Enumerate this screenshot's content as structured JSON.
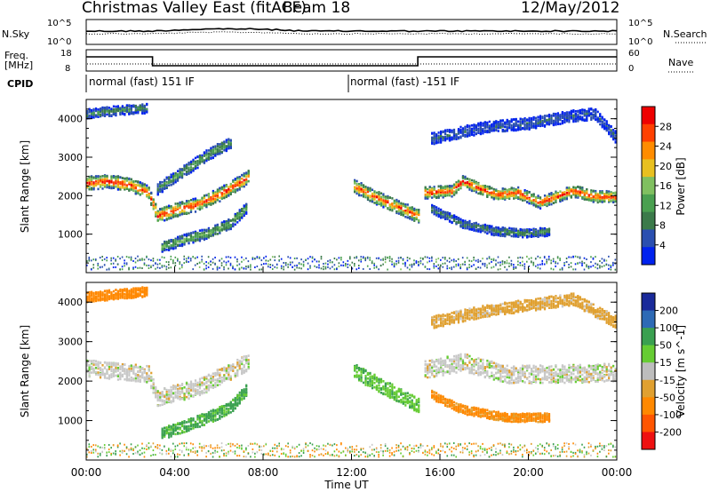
{
  "header": {
    "title": "Christmas Valley East (fitACF)",
    "beam": "Beam 18",
    "date": "12/May/2012"
  },
  "colors": {
    "power": [
      "#0022ee",
      "#2a4fb0",
      "#3b7a4a",
      "#4aa050",
      "#80c060",
      "#e8c020",
      "#ff8c00",
      "#ff4000",
      "#ee0000"
    ],
    "velocity": [
      "#1a2a9a",
      "#2d6ab5",
      "#3aa050",
      "#66cc33",
      "#bdbdbd",
      "#e0a030",
      "#ff8800",
      "#ff5500",
      "#ee1111"
    ],
    "gray": "#c8c8c8"
  },
  "chart_data": [
    {
      "type": "line",
      "name": "noise-panel",
      "left_label": "N.Sky",
      "right_label": "N.Search",
      "left_ticks": [
        "10^5",
        "10^0"
      ],
      "right_ticks": [
        "10^5",
        "10^0"
      ]
    },
    {
      "type": "line",
      "name": "frequency-panel",
      "left_label": [
        "Freq.",
        "[MHz]"
      ],
      "right_label": "Nave",
      "left_ticks": [
        "18",
        "8"
      ],
      "right_ticks": [
        "60",
        "0"
      ],
      "freq_steps": [
        {
          "from_h": 0,
          "to_h": 3,
          "level": "high"
        },
        {
          "from_h": 3,
          "to_h": 15,
          "level": "low"
        },
        {
          "from_h": 15,
          "to_h": 24,
          "level": "high"
        }
      ]
    },
    {
      "type": "table",
      "name": "cpid",
      "label": "CPID",
      "entries": [
        {
          "at_h": 0,
          "text": "normal (fast) 151 IF"
        },
        {
          "at_h": 12,
          "text": "normal (fast) -151 IF"
        }
      ]
    },
    {
      "type": "heatmap",
      "name": "power-panel",
      "ylabel": "Slant Range [km]",
      "yticks": [
        1000,
        2000,
        3000,
        4000
      ],
      "ylim": [
        0,
        4500
      ],
      "colorbar": {
        "label": "Power [dB]",
        "ticks": [
          "28",
          "24",
          "20",
          "16",
          "12",
          "8",
          "4"
        ],
        "range": [
          0,
          30
        ]
      },
      "echo_bands": [
        {
          "name": "main band",
          "points": [
            [
              0,
              2350
            ],
            [
              1,
              2400
            ],
            [
              2,
              2300
            ],
            [
              2.8,
              2100
            ],
            [
              3.2,
              1500
            ],
            [
              4,
              1650
            ],
            [
              5,
              1800
            ],
            [
              6,
              2050
            ],
            [
              7,
              2400
            ],
            [
              7.3,
              2500
            ]
          ],
          "width_km": 350,
          "peak_db": 28
        },
        {
          "name": "lower band",
          "points": [
            [
              3.4,
              700
            ],
            [
              4.5,
              900
            ],
            [
              5.5,
              1050
            ],
            [
              6.5,
              1300
            ],
            [
              7.2,
              1700
            ]
          ],
          "width_km": 280,
          "peak_db": 14
        },
        {
          "name": "upper band",
          "points": [
            [
              3.2,
              2200
            ],
            [
              4.5,
              2700
            ],
            [
              5.5,
              3100
            ],
            [
              6.5,
              3400
            ]
          ],
          "width_km": 300,
          "peak_db": 12
        },
        {
          "name": "afternoon band",
          "points": [
            [
              12,
              2300
            ],
            [
              13,
              2000
            ],
            [
              14,
              1750
            ],
            [
              15,
              1500
            ]
          ],
          "width_km": 350,
          "peak_db": 26
        },
        {
          "name": "evening band",
          "points": [
            [
              15.2,
              2100
            ],
            [
              16.5,
              2150
            ],
            [
              17,
              2400
            ],
            [
              18.5,
              2050
            ],
            [
              19.5,
              2100
            ],
            [
              20.5,
              1850
            ],
            [
              22,
              2150
            ],
            [
              23,
              2000
            ],
            [
              24,
              2000
            ]
          ],
          "width_km": 300,
          "peak_db": 28
        },
        {
          "name": "evening lower",
          "points": [
            [
              15.5,
              1700
            ],
            [
              17,
              1300
            ],
            [
              18.5,
              1100
            ],
            [
              20,
              1050
            ],
            [
              21,
              1100
            ]
          ],
          "width_km": 220,
          "peak_db": 10
        },
        {
          "name": "morning top",
          "points": [
            [
              0,
              4150
            ],
            [
              1.5,
              4250
            ],
            [
              2.8,
              4300
            ]
          ],
          "width_km": 250,
          "peak_db": 10
        },
        {
          "name": "evening top",
          "points": [
            [
              15.5,
              3500
            ],
            [
              18,
              3800
            ],
            [
              20,
              3900
            ],
            [
              22,
              4100
            ],
            [
              23,
              4150
            ],
            [
              24,
              3500
            ]
          ],
          "width_km": 300,
          "peak_db": 6
        }
      ]
    },
    {
      "type": "heatmap",
      "name": "velocity-panel",
      "xlabel": "Time UT",
      "xticks": [
        "00:00",
        "04:00",
        "08:00",
        "12:00",
        "16:00",
        "20:00",
        "00:00"
      ],
      "xlim": [
        0,
        24
      ],
      "ylabel": "Slant Range [km]",
      "yticks": [
        1000,
        2000,
        3000,
        4000
      ],
      "ylim": [
        0,
        4500
      ],
      "colorbar": {
        "label": "Velocity [m s^-1]",
        "ticks": [
          "200",
          "100",
          "50",
          "15",
          "-15",
          "-50",
          "-100",
          "-200"
        ],
        "range": [
          -250,
          250
        ]
      },
      "regions": [
        {
          "name": "ground scatter main",
          "points": [
            [
              0,
              2350
            ],
            [
              2.8,
              2200
            ],
            [
              3.2,
              1600
            ],
            [
              5,
              1850
            ],
            [
              7.3,
              2500
            ]
          ],
          "width_km": 420,
          "velocity": 0
        },
        {
          "name": "positive flow",
          "points": [
            [
              3.4,
              700
            ],
            [
              4.5,
              900
            ],
            [
              5.5,
              1100
            ],
            [
              6.5,
              1350
            ],
            [
              7.2,
              1800
            ]
          ],
          "width_km": 300,
          "velocity": 60
        },
        {
          "name": "afternoon flow",
          "points": [
            [
              12,
              2300
            ],
            [
              13,
              2000
            ],
            [
              14,
              1700
            ],
            [
              15,
              1400
            ]
          ],
          "width_km": 380,
          "velocity": 40
        },
        {
          "name": "evening ground scatter",
          "points": [
            [
              15.2,
              2300
            ],
            [
              17,
              2500
            ],
            [
              19,
              2200
            ],
            [
              21,
              2200
            ],
            [
              24,
              2250
            ]
          ],
          "width_km": 450,
          "velocity": 0
        },
        {
          "name": "evening negative",
          "points": [
            [
              15.5,
              1700
            ],
            [
              17,
              1300
            ],
            [
              19,
              1100
            ],
            [
              21,
              1100
            ]
          ],
          "width_km": 220,
          "velocity": -60
        },
        {
          "name": "top echoes",
          "points": [
            [
              0,
              4150
            ],
            [
              2.8,
              4300
            ]
          ],
          "width_km": 250,
          "velocity": -80
        },
        {
          "name": "evening top",
          "points": [
            [
              15.5,
              3500
            ],
            [
              18,
              3800
            ],
            [
              22,
              4100
            ],
            [
              24,
              3500
            ]
          ],
          "width_km": 300,
          "velocity": -30
        }
      ]
    }
  ]
}
